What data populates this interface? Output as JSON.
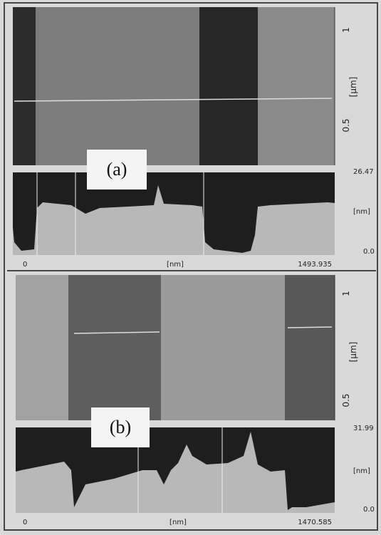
{
  "panels": [
    {
      "label": "(a)",
      "image_axis": {
        "unit": "[μm]",
        "ticks": [
          "1",
          "0.5"
        ]
      },
      "profile": {
        "y_max": "26.47",
        "y_unit": "[nm]",
        "y_min": "0.0",
        "x_min": "0",
        "x_unit": "[nm]",
        "x_max": "1493.935"
      }
    },
    {
      "label": "(b)",
      "image_axis": {
        "unit": "[μm]",
        "ticks": [
          "1",
          "0.5"
        ]
      },
      "profile": {
        "y_max": "31.99",
        "y_unit": "[nm]",
        "y_min": "0.0",
        "x_min": "0",
        "x_unit": "[nm]",
        "x_max": "1470.585"
      }
    }
  ]
}
